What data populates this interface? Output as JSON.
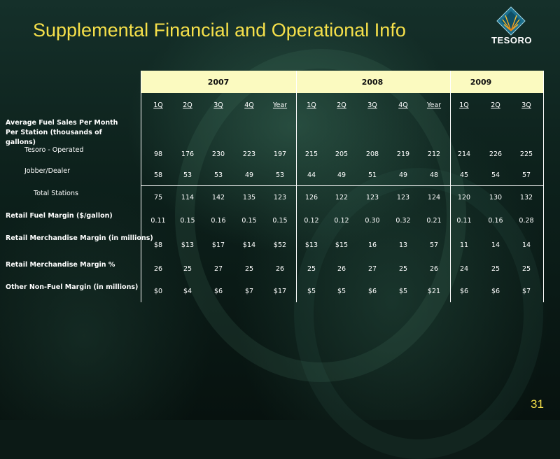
{
  "slide": {
    "title": "Supplemental Financial and Operational Info",
    "page_number": "31",
    "accent_color": "#f6e04a",
    "header_band_color": "#fbfac0"
  },
  "logo": {
    "text": "TESORO",
    "icon": "tesoro-diamond-logo-icon"
  },
  "table": {
    "years": [
      "2007",
      "2008",
      "2009"
    ],
    "quarters": [
      "1Q",
      "2Q",
      "3Q",
      "4Q",
      "Year",
      "1Q",
      "2Q",
      "3Q",
      "4Q",
      "Year",
      "1Q",
      "2Q",
      "3Q"
    ],
    "section_label": "Average Fuel Sales Per Month Per Station (thousands of gallons)",
    "rows": [
      {
        "label": "Tesoro - Operated",
        "values": [
          "98",
          "176",
          "230",
          "223",
          "197",
          "215",
          "205",
          "208",
          "219",
          "212",
          "214",
          "226",
          "225"
        ]
      },
      {
        "label": "Jobber/Dealer",
        "values": [
          "58",
          "53",
          "53",
          "49",
          "53",
          "44",
          "49",
          "51",
          "49",
          "48",
          "45",
          "54",
          "57"
        ]
      },
      {
        "label": "Total Stations",
        "values": [
          "75",
          "114",
          "142",
          "135",
          "123",
          "126",
          "122",
          "123",
          "123",
          "124",
          "120",
          "130",
          "132"
        ]
      },
      {
        "label": "Retail Fuel Margin ($/gallon)",
        "values": [
          "0.11",
          "0.15",
          "0.16",
          "0.15",
          "0.15",
          "0.12",
          "0.12",
          "0.30",
          "0.32",
          "0.21",
          "0.11",
          "0.16",
          "0.28"
        ]
      },
      {
        "label": "Retail Merchandise Margin (in millions)",
        "values": [
          "$8",
          "$13",
          "$17",
          "$14",
          "$52",
          "$13",
          "$15",
          "16",
          "13",
          "57",
          "11",
          "14",
          "14"
        ]
      },
      {
        "label": "Retail Merchandise Margin %",
        "values": [
          "26",
          "25",
          "27",
          "25",
          "26",
          "25",
          "26",
          "27",
          "25",
          "26",
          "24",
          "25",
          "25"
        ]
      },
      {
        "label": "Other Non-Fuel Margin (in millions)",
        "values": [
          "$0",
          "$4",
          "$6",
          "$7",
          "$17",
          "$5",
          "$5",
          "$6",
          "$5",
          "$21",
          "$6",
          "$6",
          "$7"
        ]
      }
    ]
  }
}
